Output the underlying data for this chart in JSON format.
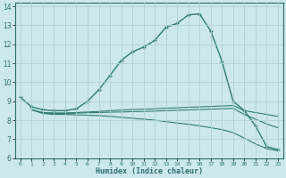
{
  "xlabel": "Humidex (Indice chaleur)",
  "bg_color": "#cce8ec",
  "grid_color": "#b0d0d5",
  "line_color": "#2e7d6e",
  "xlim": [
    -0.5,
    23.5
  ],
  "ylim": [
    6,
    14.2
  ],
  "xticks": [
    0,
    1,
    2,
    3,
    4,
    5,
    6,
    7,
    8,
    9,
    10,
    11,
    12,
    13,
    14,
    15,
    16,
    17,
    18,
    19,
    20,
    21,
    22,
    23
  ],
  "yticks": [
    6,
    7,
    8,
    9,
    10,
    11,
    12,
    13,
    14
  ],
  "line1_x": [
    0,
    1,
    2,
    3,
    4,
    5,
    6,
    7,
    8,
    9,
    10,
    11,
    12,
    13,
    14,
    15,
    16,
    17,
    18,
    19,
    20,
    21,
    22,
    23
  ],
  "line1_y": [
    9.2,
    8.7,
    8.55,
    8.5,
    8.5,
    8.6,
    9.0,
    9.6,
    10.35,
    11.15,
    11.6,
    11.85,
    12.2,
    12.9,
    13.1,
    13.55,
    13.6,
    12.7,
    11.1,
    9.0,
    8.5,
    7.7,
    6.6,
    6.45
  ],
  "line2_x": [
    1,
    2,
    3,
    4,
    5,
    6,
    7,
    8,
    9,
    10,
    11,
    12,
    13,
    14,
    15,
    16,
    17,
    18,
    19,
    20,
    21,
    22,
    23
  ],
  "line2_y": [
    8.55,
    8.4,
    8.38,
    8.38,
    8.4,
    8.43,
    8.46,
    8.5,
    8.53,
    8.56,
    8.58,
    8.6,
    8.63,
    8.65,
    8.68,
    8.7,
    8.72,
    8.75,
    8.77,
    8.5,
    8.4,
    8.3,
    8.2
  ],
  "line3_x": [
    1,
    2,
    3,
    4,
    5,
    6,
    7,
    8,
    9,
    10,
    11,
    12,
    13,
    14,
    15,
    16,
    17,
    18,
    19,
    20,
    21,
    22,
    23
  ],
  "line3_y": [
    8.55,
    8.38,
    8.35,
    8.35,
    8.37,
    8.39,
    8.4,
    8.42,
    8.43,
    8.45,
    8.46,
    8.48,
    8.5,
    8.52,
    8.54,
    8.56,
    8.58,
    8.6,
    8.62,
    8.3,
    8.05,
    7.8,
    7.6
  ],
  "line4_x": [
    1,
    2,
    3,
    4,
    5,
    6,
    7,
    8,
    9,
    10,
    11,
    12,
    13,
    14,
    15,
    16,
    17,
    18,
    19,
    20,
    21,
    22,
    23
  ],
  "line4_y": [
    8.55,
    8.35,
    8.3,
    8.3,
    8.28,
    8.26,
    8.24,
    8.2,
    8.15,
    8.1,
    8.05,
    8.0,
    7.92,
    7.85,
    7.78,
    7.7,
    7.6,
    7.5,
    7.35,
    7.05,
    6.75,
    6.5,
    6.38
  ]
}
